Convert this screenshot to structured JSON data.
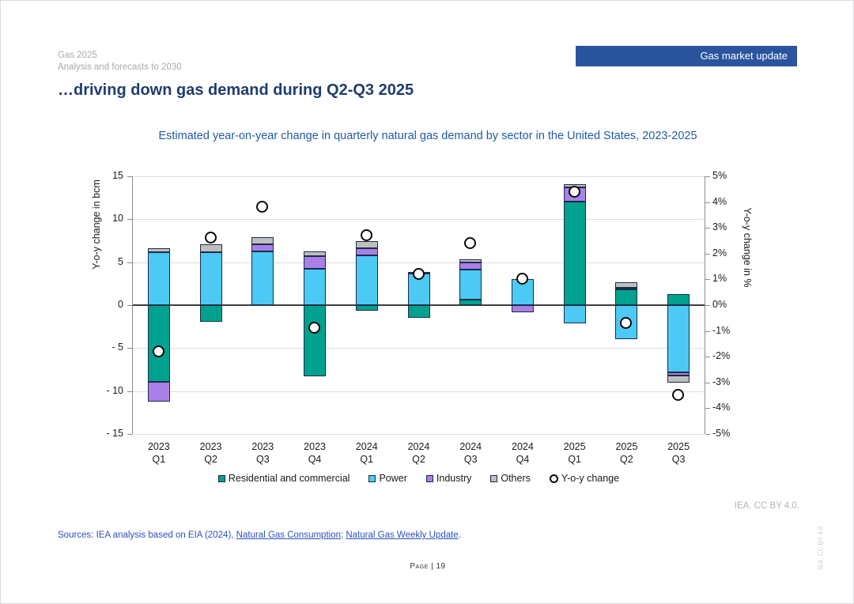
{
  "page": {
    "eyebrow_line1": "Gas 2025",
    "eyebrow_line2": "Analysis and forecasts to 2030",
    "badge": "Gas market update",
    "title": "…driving down gas demand during Q2-Q3 2025",
    "iea_credit": "IEA. CC BY 4.0.",
    "iea_credit_vertical": "IEA. CC BY 4.0",
    "page_label": "Page | 19"
  },
  "sources": {
    "prefix": "Sources: IEA analysis based on EIA (2024), ",
    "link1": "Natural Gas Consumption",
    "separator": "; ",
    "link2": "Natural Gas Weekly Update",
    "suffix": "."
  },
  "chart_data": {
    "type": "bar",
    "stacked": true,
    "title": "Estimated year-on-year change in quarterly natural gas demand by sector in the United States, 2023-2025",
    "ylabel_left": "Y-o-y change in bcm",
    "ylabel_right": "Y-o-y change in %",
    "ylim_left": [
      -15,
      15
    ],
    "ylim_right": [
      -5,
      5
    ],
    "grid": true,
    "legend_position": "bottom",
    "yticks_left": [
      {
        "value": 15,
        "label": "15"
      },
      {
        "value": 10,
        "label": "10"
      },
      {
        "value": 5,
        "label": "5"
      },
      {
        "value": 0,
        "label": "0"
      },
      {
        "value": -5,
        "label": "- 5"
      },
      {
        "value": -10,
        "label": "- 10"
      },
      {
        "value": -15,
        "label": "- 15"
      }
    ],
    "yticks_right": [
      {
        "value": 5,
        "label": "5%"
      },
      {
        "value": 4,
        "label": "4%"
      },
      {
        "value": 3,
        "label": "3%"
      },
      {
        "value": 2,
        "label": "2%"
      },
      {
        "value": 1,
        "label": "1%"
      },
      {
        "value": 0,
        "label": "0%"
      },
      {
        "value": -1,
        "label": "-1%"
      },
      {
        "value": -2,
        "label": "-2%"
      },
      {
        "value": -3,
        "label": "-3%"
      },
      {
        "value": -4,
        "label": "-4%"
      },
      {
        "value": -5,
        "label": "-5%"
      }
    ],
    "categories": [
      [
        "2023",
        "Q1"
      ],
      [
        "2023",
        "Q2"
      ],
      [
        "2023",
        "Q3"
      ],
      [
        "2023",
        "Q4"
      ],
      [
        "2024",
        "Q1"
      ],
      [
        "2024",
        "Q2"
      ],
      [
        "2024",
        "Q3"
      ],
      [
        "2024",
        "Q4"
      ],
      [
        "2025",
        "Q1"
      ],
      [
        "2025",
        "Q2"
      ],
      [
        "2025",
        "Q3"
      ]
    ],
    "unit_bcm": "bcm",
    "series": [
      {
        "name": "Residential and commercial",
        "color": "#00a18e",
        "values": [
          -8.9,
          -1.9,
          0,
          -8.3,
          -0.6,
          -1.5,
          0.6,
          0,
          12.1,
          1.8,
          1.3
        ]
      },
      {
        "name": "Power",
        "color": "#4cc9f4",
        "values": [
          6.2,
          6.2,
          6.3,
          4.2,
          5.8,
          3.7,
          3.5,
          3.0,
          -2.1,
          -4.0,
          -7.8
        ]
      },
      {
        "name": "Industry",
        "color": "#a980e8",
        "values": [
          -2.3,
          0,
          0.8,
          1.5,
          0.8,
          0.2,
          0.9,
          -0.8,
          1.6,
          0.2,
          -0.4
        ]
      },
      {
        "name": "Others",
        "color": "#bfbfbf",
        "values": [
          0.4,
          0.9,
          0.8,
          0.6,
          0.9,
          0,
          0.3,
          0,
          0.4,
          0.7,
          -0.8
        ]
      }
    ],
    "line_series": {
      "name": "Y-o-y change",
      "unit": "%",
      "marker": "open-circle",
      "values": [
        -1.8,
        2.6,
        3.8,
        -0.9,
        2.7,
        1.2,
        2.4,
        1.0,
        4.4,
        -0.7,
        -3.5
      ]
    },
    "colors": {
      "bar_border": "#1c2b47",
      "zero_line": "#3d3d3d",
      "gridline": "#dcdcdc",
      "marker_stroke": "#0a0a0a"
    }
  }
}
